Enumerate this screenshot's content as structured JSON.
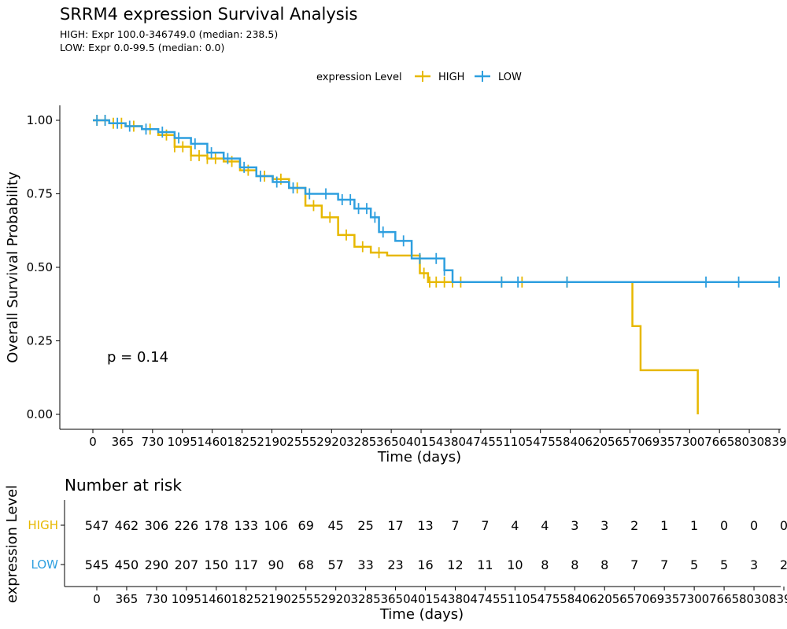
{
  "chart_data": {
    "type": "line",
    "title": "SRRM4 expression Survival Analysis",
    "subtitle": [
      "HIGH: Expr 100.0-346749.0 (median: 238.5)",
      "LOW: Expr 0.0-99.5 (median: 0.0)"
    ],
    "legend": {
      "title": "expression Level",
      "position": "top",
      "items": [
        {
          "name": "HIGH",
          "color": "#E7B800"
        },
        {
          "name": "LOW",
          "color": "#2E9FDF"
        }
      ]
    },
    "xlabel": "Time (days)",
    "ylabel": "Overall Survival Probability",
    "xlim": [
      0,
      8395
    ],
    "ylim": [
      0,
      1
    ],
    "xticks": [
      0,
      365,
      730,
      1095,
      1460,
      1825,
      2190,
      2555,
      2920,
      3285,
      3650,
      4015,
      4380,
      4745,
      5110,
      5475,
      5840,
      6205,
      6570,
      6935,
      7300,
      7665,
      8030,
      8395
    ],
    "xtick_labels": [
      "0",
      "365",
      "730",
      "1095",
      "1460",
      "1825",
      "2190",
      "2555",
      "2920",
      "3285",
      "3650",
      "4015",
      "4380",
      "4745",
      "5110",
      "5475",
      "5840",
      "6205",
      "6570",
      "6935",
      "7300",
      "7665",
      "8030",
      "8395"
    ],
    "yticks": [
      0,
      0.25,
      0.5,
      0.75,
      1.0
    ],
    "ytick_labels": [
      "0.00",
      "0.25",
      "0.50",
      "0.75",
      "1.00"
    ],
    "pvalue": "p = 0.14",
    "series": [
      {
        "name": "HIGH",
        "color": "#E7B800",
        "x": [
          0,
          200,
          400,
          600,
          800,
          1000,
          1200,
          1400,
          1600,
          1800,
          2000,
          2200,
          2400,
          2600,
          2800,
          3000,
          3200,
          3400,
          3600,
          3900,
          4000,
          4100,
          6500,
          6600,
          6700,
          7400
        ],
        "y": [
          1.0,
          0.99,
          0.98,
          0.97,
          0.95,
          0.91,
          0.88,
          0.87,
          0.86,
          0.83,
          0.81,
          0.8,
          0.77,
          0.71,
          0.67,
          0.61,
          0.57,
          0.55,
          0.54,
          0.54,
          0.48,
          0.45,
          0.45,
          0.3,
          0.15,
          0.0
        ],
        "censor_x": [
          50,
          150,
          250,
          350,
          500,
          700,
          900,
          1000,
          1100,
          1200,
          1300,
          1400,
          1500,
          1700,
          1900,
          2100,
          2300,
          2500,
          2700,
          2900,
          3100,
          3300,
          3500,
          4050,
          4120,
          4200,
          4300,
          4400,
          4500,
          5000,
          5250,
          5800
        ]
      },
      {
        "name": "LOW",
        "color": "#2E9FDF",
        "x": [
          0,
          200,
          400,
          600,
          800,
          1000,
          1200,
          1400,
          1600,
          1800,
          2000,
          2200,
          2400,
          2600,
          2800,
          3000,
          3200,
          3400,
          3500,
          3700,
          3900,
          4100,
          4300,
          4400,
          8395
        ],
        "y": [
          1.0,
          0.99,
          0.98,
          0.97,
          0.96,
          0.94,
          0.92,
          0.89,
          0.87,
          0.84,
          0.81,
          0.79,
          0.77,
          0.75,
          0.75,
          0.73,
          0.7,
          0.67,
          0.62,
          0.59,
          0.53,
          0.53,
          0.49,
          0.45,
          0.45
        ],
        "censor_x": [
          50,
          150,
          300,
          450,
          650,
          850,
          1050,
          1250,
          1450,
          1650,
          1850,
          2050,
          2250,
          2450,
          2650,
          2850,
          3050,
          3150,
          3250,
          3350,
          3450,
          3550,
          3800,
          4000,
          4200,
          4300,
          5000,
          5200,
          5800,
          7500,
          7900,
          8395
        ]
      }
    ],
    "risk_table": {
      "title": "Number at risk",
      "ylabel": "expression Level",
      "xlabel": "Time (days)",
      "rows": [
        {
          "name": "HIGH",
          "color": "#E7B800",
          "values": [
            "547",
            "462",
            "306",
            "226",
            "178",
            "133",
            "106",
            "69",
            "45",
            "25",
            "17",
            "13",
            "7",
            "7",
            "4",
            "4",
            "3",
            "3",
            "2",
            "1",
            "1",
            "0",
            "0",
            "0"
          ]
        },
        {
          "name": "LOW",
          "color": "#2E9FDF",
          "values": [
            "545",
            "450",
            "290",
            "207",
            "150",
            "117",
            "90",
            "68",
            "57",
            "33",
            "23",
            "16",
            "12",
            "11",
            "10",
            "8",
            "8",
            "8",
            "7",
            "7",
            "5",
            "5",
            "3",
            "2"
          ]
        }
      ]
    }
  }
}
